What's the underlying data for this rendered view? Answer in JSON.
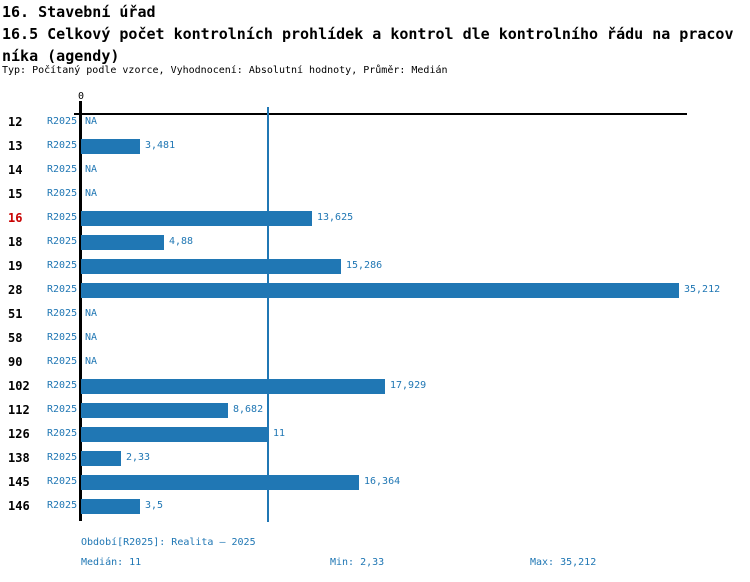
{
  "report": {
    "section_title": "16. Stavební úřad",
    "indicator_title_line1": "16.5 Celkový počet kontrolních prohlídek a kontrol dle kontrolního řádu na pracov",
    "indicator_title_line2": "níka (agendy)",
    "tagline": "Typ: Počítaný podle vzorce, Vyhodnocení: Absolutní hodnoty, Průměr: Medián"
  },
  "chart_data": {
    "type": "bar",
    "orientation": "horizontal",
    "title": "16.5 Celkový počet kontrolních prohlídek a kontrol dle kontrolního řádu na pracovníka (agendy)",
    "xlabel": "",
    "ylabel": "",
    "xlim": [
      0,
      39.4
    ],
    "zero_tick_label": "0",
    "na_label": "NA",
    "series_label": "R2025",
    "grid": false,
    "legend_position": "none",
    "median_reference_line": 11,
    "categories": [
      "12",
      "13",
      "14",
      "15",
      "16",
      "18",
      "19",
      "28",
      "51",
      "58",
      "90",
      "102",
      "112",
      "126",
      "138",
      "145",
      "146"
    ],
    "rows": [
      {
        "id": "12",
        "value": null,
        "display": "NA",
        "highlight": false
      },
      {
        "id": "13",
        "value": 3.481,
        "display": "3,481",
        "highlight": false
      },
      {
        "id": "14",
        "value": null,
        "display": "NA",
        "highlight": false
      },
      {
        "id": "15",
        "value": null,
        "display": "NA",
        "highlight": false
      },
      {
        "id": "16",
        "value": 13.625,
        "display": "13,625",
        "highlight": true
      },
      {
        "id": "18",
        "value": 4.88,
        "display": "4,88",
        "highlight": false
      },
      {
        "id": "19",
        "value": 15.286,
        "display": "15,286",
        "highlight": false
      },
      {
        "id": "28",
        "value": 35.212,
        "display": "35,212",
        "highlight": false
      },
      {
        "id": "51",
        "value": null,
        "display": "NA",
        "highlight": false
      },
      {
        "id": "58",
        "value": null,
        "display": "NA",
        "highlight": false
      },
      {
        "id": "90",
        "value": null,
        "display": "NA",
        "highlight": false
      },
      {
        "id": "102",
        "value": 17.929,
        "display": "17,929",
        "highlight": false
      },
      {
        "id": "112",
        "value": 8.682,
        "display": "8,682",
        "highlight": false
      },
      {
        "id": "126",
        "value": 11,
        "display": "11",
        "highlight": false
      },
      {
        "id": "138",
        "value": 2.33,
        "display": "2,33",
        "highlight": false
      },
      {
        "id": "145",
        "value": 16.364,
        "display": "16,364",
        "highlight": false
      },
      {
        "id": "146",
        "value": 3.5,
        "display": "3,5",
        "highlight": false
      }
    ],
    "colors": {
      "bar": "#2077B4",
      "text_blue": "#2077B4",
      "highlight_label": "#C80000",
      "axis": "#000000"
    }
  },
  "footer": {
    "period": "Období[R2025]: Realita – 2025",
    "median": "Medián: 11",
    "min": "Min: 2,33",
    "max": "Max: 35,212"
  }
}
